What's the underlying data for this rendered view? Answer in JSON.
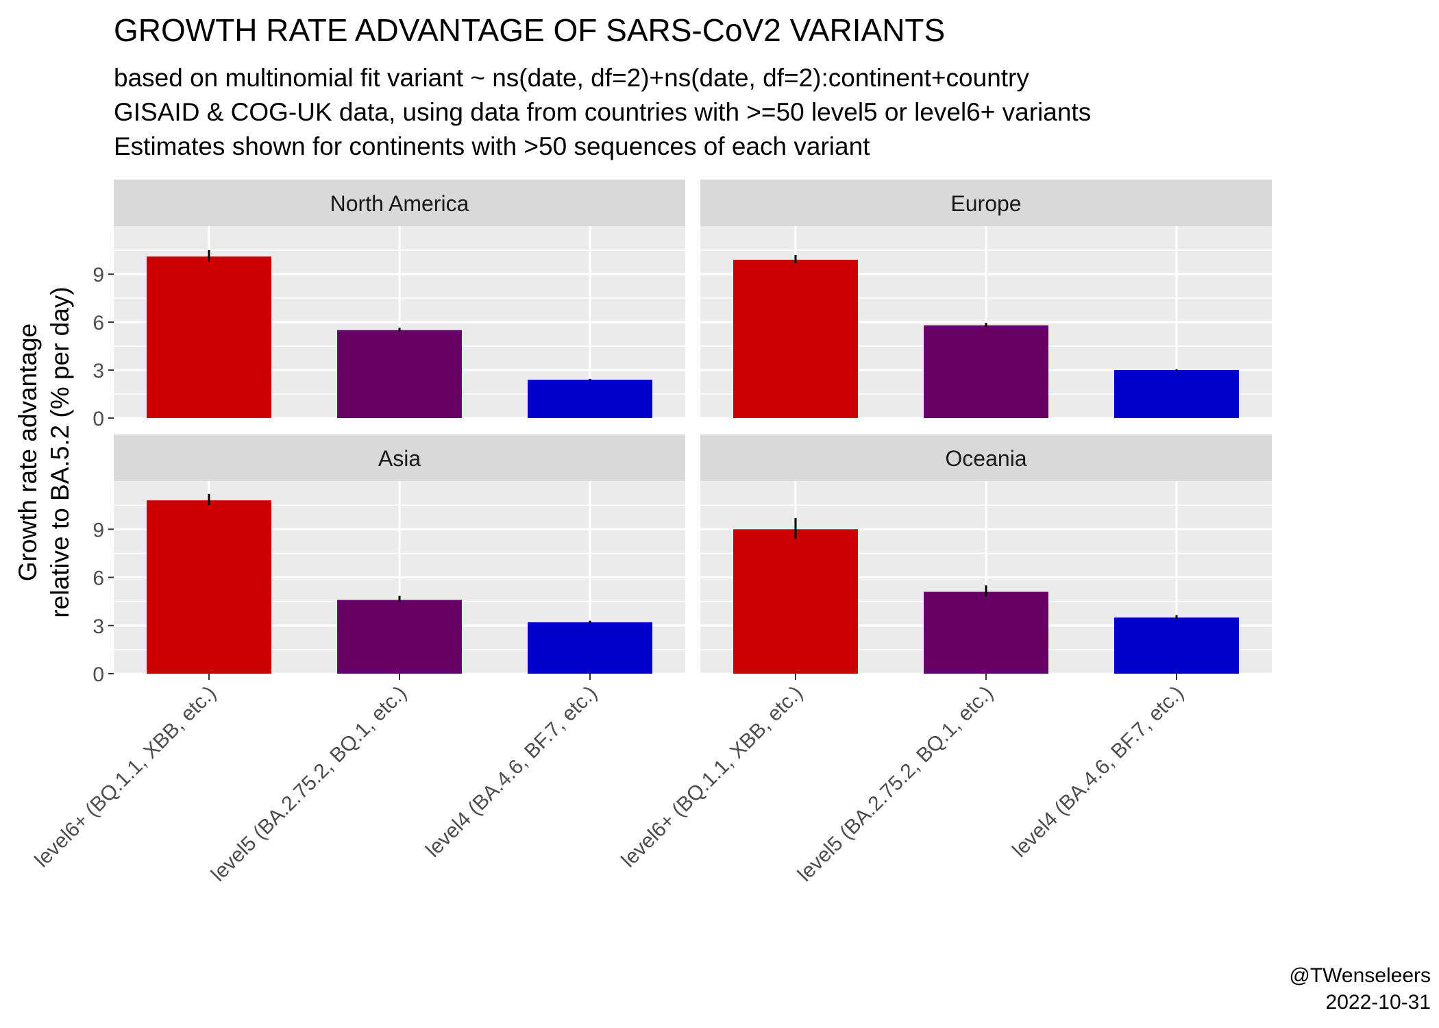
{
  "title": "GROWTH RATE ADVANTAGE OF SARS-CoV2 VARIANTS",
  "subtitle_lines": [
    "based on multinomial fit variant ~ ns(date, df=2)+ns(date, df=2):continent+country",
    "GISAID & COG-UK data, using data from countries with >=50 level5 or level6+ variants",
    "Estimates shown for continents with >50 sequences of each variant"
  ],
  "ylabel_lines": [
    "Growth rate advantage",
    "relative to BA.5.2 (% per day)"
  ],
  "caption_lines": [
    "@TWenseleers",
    "2022-10-31"
  ],
  "colors": {
    "level6+": "#cc0000",
    "level5": "#660066",
    "level4": "#0000cc",
    "panel_bg": "#ebebeb",
    "strip_bg": "#d9d9d9",
    "grid": "#ffffff"
  },
  "chart_data": {
    "type": "bar",
    "categories": [
      "level6+ (BQ.1.1, XBB, etc.)",
      "level5 (BA.2.75.2, BQ.1, etc.)",
      "level4 (BA.4.6, BF.7, etc.)"
    ],
    "ylim": [
      0,
      12
    ],
    "yticks": [
      0,
      3,
      6,
      9
    ],
    "grid": true,
    "legend": "none",
    "panels": [
      {
        "name": "North America",
        "values": [
          10.1,
          5.5,
          2.4
        ],
        "lower": [
          9.8,
          5.4,
          2.35
        ],
        "upper": [
          10.5,
          5.65,
          2.45
        ]
      },
      {
        "name": "Europe",
        "values": [
          9.9,
          5.8,
          3.0
        ],
        "lower": [
          9.7,
          5.7,
          2.95
        ],
        "upper": [
          10.2,
          5.95,
          3.05
        ]
      },
      {
        "name": "Asia",
        "values": [
          10.8,
          4.6,
          3.2
        ],
        "lower": [
          10.5,
          4.45,
          3.15
        ],
        "upper": [
          11.2,
          4.85,
          3.3
        ]
      },
      {
        "name": "Oceania",
        "values": [
          9.0,
          5.1,
          3.5
        ],
        "lower": [
          8.4,
          4.8,
          3.4
        ],
        "upper": [
          9.7,
          5.5,
          3.65
        ]
      }
    ]
  }
}
